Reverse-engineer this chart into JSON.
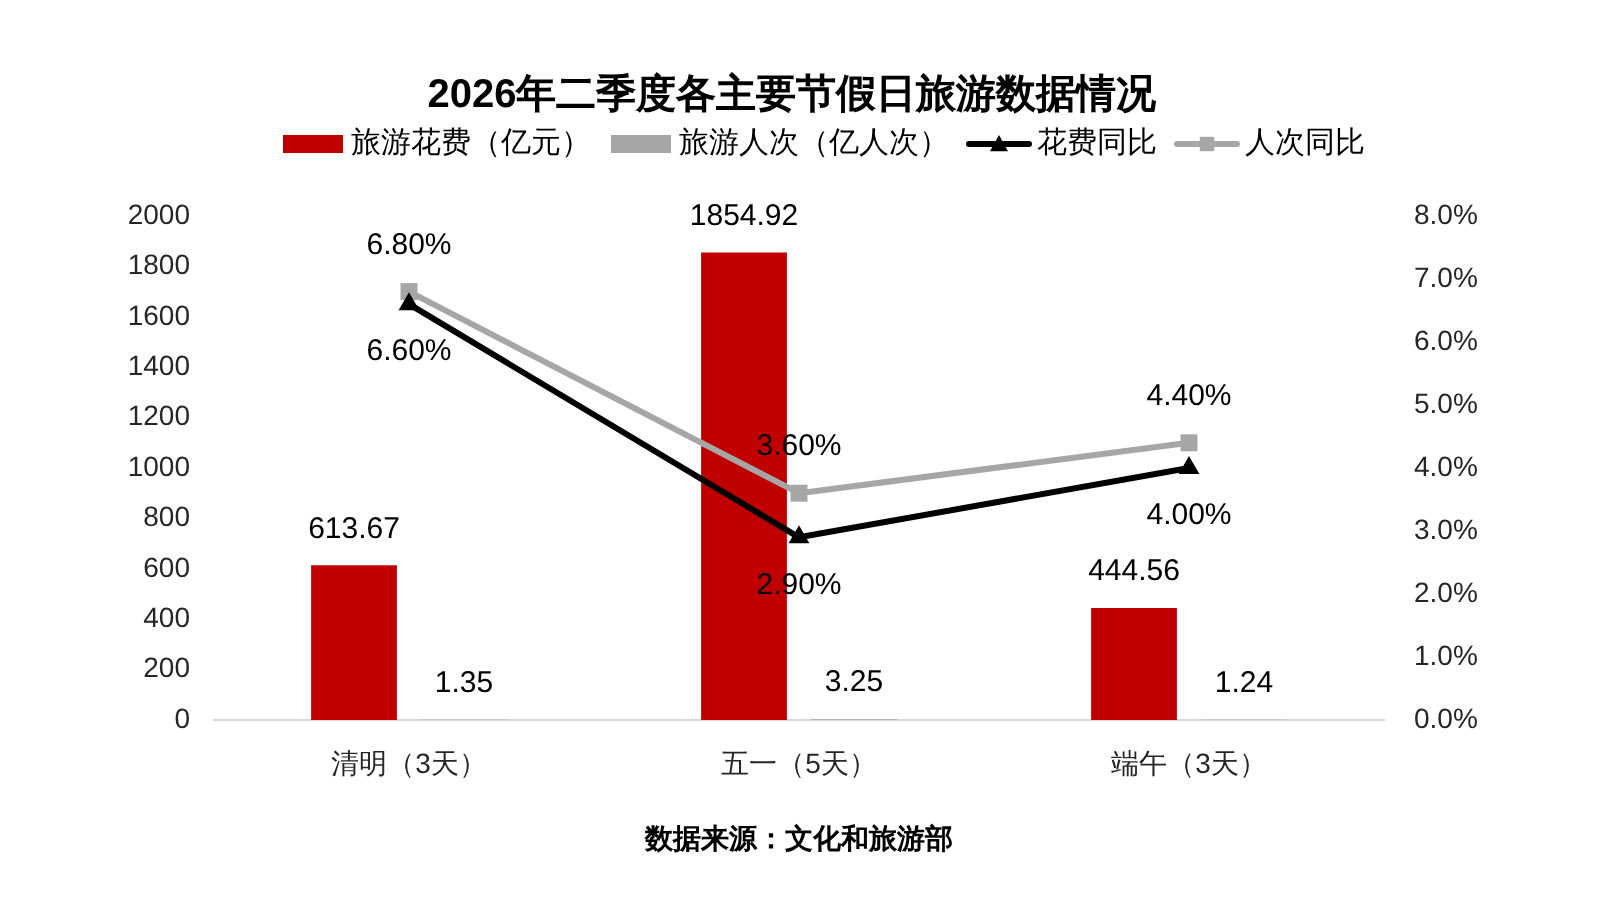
{
  "chart_data": {
    "type": "bar",
    "title": "2026年二季度各主要节假日旅游数据情况",
    "categories": [
      "清明（3天）",
      "五一（5天）",
      "端午（3天）"
    ],
    "series": [
      {
        "name": "旅游花费（亿元）",
        "color": "#c00000",
        "values": [
          613.67,
          1854.92,
          444.56
        ],
        "value_labels": [
          "613.67",
          "1854.92",
          "444.56"
        ]
      },
      {
        "name": "旅游人次（亿人次）",
        "color": "#a6a6a6",
        "values": [
          1.35,
          3.25,
          1.24
        ],
        "value_labels": [
          "1.35",
          "3.25",
          "1.24"
        ]
      },
      {
        "name": "花费同比",
        "type": "line",
        "axis": "y2",
        "color": "#000000",
        "marker": "triangle",
        "values": [
          6.6,
          2.9,
          4.0
        ],
        "value_labels": [
          "6.60%",
          "2.90%",
          "4.00%"
        ]
      },
      {
        "name": "人次同比",
        "type": "line",
        "axis": "y2",
        "color": "#a6a6a6",
        "marker": "square",
        "values": [
          6.8,
          3.6,
          4.4
        ],
        "value_labels": [
          "6.80%",
          "3.60%",
          "4.40%"
        ]
      }
    ],
    "ylim": [
      0,
      2000
    ],
    "yticks": [
      0,
      200,
      400,
      600,
      800,
      1000,
      1200,
      1400,
      1600,
      1800,
      2000
    ],
    "y2lim": [
      0,
      8
    ],
    "y2ticks": [
      {
        "value": 0,
        "label": "0.0%"
      },
      {
        "value": 1,
        "label": "1.0%"
      },
      {
        "value": 2,
        "label": "2.0%"
      },
      {
        "value": 3,
        "label": "3.0%"
      },
      {
        "value": 4,
        "label": "4.0%"
      },
      {
        "value": 5,
        "label": "5.0%"
      },
      {
        "value": 6,
        "label": "6.0%"
      },
      {
        "value": 7,
        "label": "7.0%"
      },
      {
        "value": 8,
        "label": "8.0%"
      }
    ],
    "legend": "top",
    "annotations": [
      "数据来源：文化和旅游部"
    ]
  }
}
